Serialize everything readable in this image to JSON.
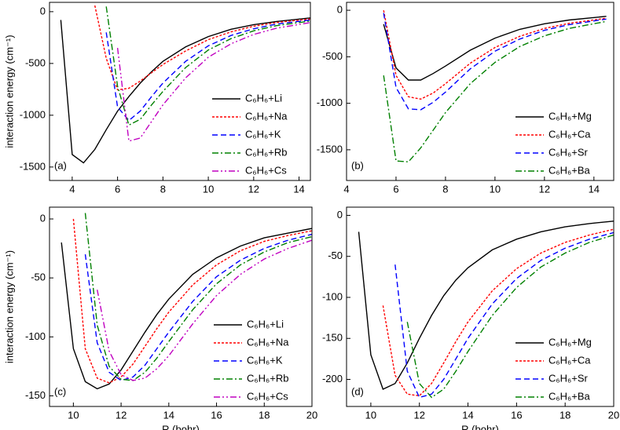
{
  "chart_data": [
    {
      "type": "line",
      "label": "(a)",
      "y_label": "interaction energy (cm⁻¹)",
      "legend": "lower right",
      "xlim": [
        3,
        14.5
      ],
      "xticks": [
        4,
        6,
        8,
        10,
        12,
        14
      ],
      "ylim": [
        -1630,
        90
      ],
      "yticks": [
        0,
        -500,
        -1000,
        -1500
      ],
      "x": [
        3.5,
        4,
        4.5,
        5,
        5.5,
        6,
        6.5,
        7,
        7.5,
        8,
        9,
        10,
        11,
        12,
        13,
        14.5
      ],
      "series": [
        {
          "name": "C₆H₆+Li",
          "color": "#000000",
          "values": [
            -80,
            -1380,
            -1460,
            -1330,
            -1140,
            -960,
            -820,
            -690,
            -580,
            -480,
            -340,
            -240,
            -170,
            -125,
            -95,
            -60
          ]
        },
        {
          "name": "C₆H₆+Na",
          "color": "#ff0000",
          "values": [
            null,
            null,
            null,
            60,
            -450,
            -755,
            -740,
            -670,
            -590,
            -510,
            -380,
            -270,
            -195,
            -140,
            -105,
            -70
          ]
        },
        {
          "name": "C₆H₆+K",
          "color": "#0000ff",
          "values": [
            null,
            null,
            null,
            null,
            -200,
            -920,
            -1050,
            -960,
            -820,
            -690,
            -480,
            -330,
            -230,
            -165,
            -120,
            -80
          ]
        },
        {
          "name": "C₆H₆+Rb",
          "color": "#008000",
          "values": [
            null,
            null,
            null,
            null,
            50,
            -720,
            -1095,
            -1040,
            -900,
            -770,
            -540,
            -370,
            -260,
            -185,
            -135,
            -90
          ]
        },
        {
          "name": "C₆H₆+Cs",
          "color": "#c000c0",
          "values": [
            null,
            null,
            null,
            null,
            null,
            -350,
            -1250,
            -1220,
            -1060,
            -900,
            -640,
            -440,
            -310,
            -220,
            -160,
            -105
          ]
        }
      ]
    },
    {
      "type": "line",
      "label": "(b)",
      "legend": "lower right",
      "xlim": [
        4,
        14.8
      ],
      "xticks": [
        4,
        6,
        8,
        10,
        12,
        14
      ],
      "ylim": [
        -1830,
        85
      ],
      "yticks": [
        0,
        -500,
        -1000,
        -1500
      ],
      "x": [
        5,
        5.5,
        6,
        6.5,
        7,
        7.5,
        8,
        9,
        10,
        11,
        12,
        13,
        14.5
      ],
      "series": [
        {
          "name": "C₆H₆+Mg",
          "color": "#000000",
          "values": [
            null,
            -150,
            -620,
            -750,
            -750,
            -680,
            -600,
            -430,
            -300,
            -205,
            -145,
            -105,
            -65
          ]
        },
        {
          "name": "C₆H₆+Ca",
          "color": "#ff0000",
          "values": [
            null,
            0,
            -700,
            -930,
            -955,
            -890,
            -790,
            -570,
            -400,
            -280,
            -195,
            -140,
            -85
          ]
        },
        {
          "name": "C₆H₆+Sr",
          "color": "#0000ff",
          "values": [
            null,
            -30,
            -830,
            -1060,
            -1070,
            -990,
            -880,
            -630,
            -440,
            -310,
            -215,
            -155,
            -95
          ]
        },
        {
          "name": "C₆H₆+Ba",
          "color": "#008000",
          "values": [
            null,
            -700,
            -1620,
            -1630,
            -1480,
            -1290,
            -1100,
            -790,
            -560,
            -390,
            -275,
            -195,
            -120
          ]
        }
      ]
    },
    {
      "type": "line",
      "label": "(c)",
      "y_label": "interaction energy (cm⁻¹)",
      "x_label": "R (bohr)",
      "legend": "lower right",
      "xlim": [
        9,
        20
      ],
      "xticks": [
        10,
        12,
        14,
        16,
        18,
        20
      ],
      "ylim": [
        -159,
        10
      ],
      "yticks": [
        0,
        -50,
        -100,
        -150
      ],
      "x": [
        9.5,
        10,
        10.5,
        11,
        11.5,
        12,
        12.5,
        13,
        13.5,
        14,
        15,
        16,
        17,
        18,
        19,
        20
      ],
      "series": [
        {
          "name": "C₆H₆+Li",
          "color": "#000000",
          "values": [
            -20,
            -110,
            -138,
            -144,
            -140,
            -128,
            -112,
            -96,
            -81,
            -68,
            -47,
            -33,
            -23,
            -16,
            -12,
            -8
          ]
        },
        {
          "name": "C₆H₆+Na",
          "color": "#ff0000",
          "values": [
            null,
            0,
            -110,
            -135,
            -139,
            -134,
            -123,
            -108,
            -93,
            -79,
            -56,
            -39,
            -27,
            -19,
            -14,
            -10
          ]
        },
        {
          "name": "C₆H₆+K",
          "color": "#0000ff",
          "values": [
            null,
            null,
            -30,
            -105,
            -130,
            -137,
            -134,
            -124,
            -110,
            -96,
            -70,
            -49,
            -35,
            -25,
            -18,
            -13
          ]
        },
        {
          "name": "C₆H₆+Rb",
          "color": "#008000",
          "values": [
            null,
            null,
            5,
            -90,
            -125,
            -136,
            -137,
            -130,
            -118,
            -104,
            -77,
            -55,
            -39,
            -28,
            -20,
            -15
          ]
        },
        {
          "name": "C₆H₆+Cs",
          "color": "#c000c0",
          "values": [
            null,
            null,
            null,
            -60,
            -112,
            -132,
            -137,
            -135,
            -127,
            -116,
            -89,
            -65,
            -47,
            -34,
            -25,
            -18
          ]
        }
      ]
    },
    {
      "type": "line",
      "label": "(d)",
      "x_label": "R (bohr)",
      "legend": "lower right",
      "xlim": [
        9,
        20
      ],
      "xticks": [
        10,
        12,
        14,
        16,
        18,
        20
      ],
      "ylim": [
        -233,
        10
      ],
      "yticks": [
        0,
        -50,
        -100,
        -150,
        -200
      ],
      "x": [
        9.5,
        10,
        10.5,
        11,
        11.5,
        12,
        12.5,
        13,
        13.5,
        14,
        15,
        16,
        17,
        18,
        19,
        20
      ],
      "series": [
        {
          "name": "C₆H₆+Mg",
          "color": "#000000",
          "values": [
            -20,
            -170,
            -212,
            -205,
            -180,
            -150,
            -122,
            -98,
            -79,
            -64,
            -42,
            -29,
            -20,
            -14,
            -10,
            -7
          ]
        },
        {
          "name": "C₆H₆+Ca",
          "color": "#ff0000",
          "values": [
            null,
            null,
            -110,
            -195,
            -218,
            -220,
            -205,
            -180,
            -154,
            -130,
            -92,
            -65,
            -46,
            -33,
            -24,
            -17
          ]
        },
        {
          "name": "C₆H₆+Sr",
          "color": "#0000ff",
          "values": [
            null,
            null,
            null,
            -60,
            -190,
            -222,
            -218,
            -200,
            -175,
            -150,
            -108,
            -77,
            -55,
            -40,
            -29,
            -21
          ]
        },
        {
          "name": "C₆H₆+Ba",
          "color": "#008000",
          "values": [
            null,
            null,
            null,
            null,
            -130,
            -205,
            -222,
            -212,
            -190,
            -166,
            -122,
            -88,
            -63,
            -46,
            -33,
            -24
          ]
        }
      ]
    }
  ]
}
